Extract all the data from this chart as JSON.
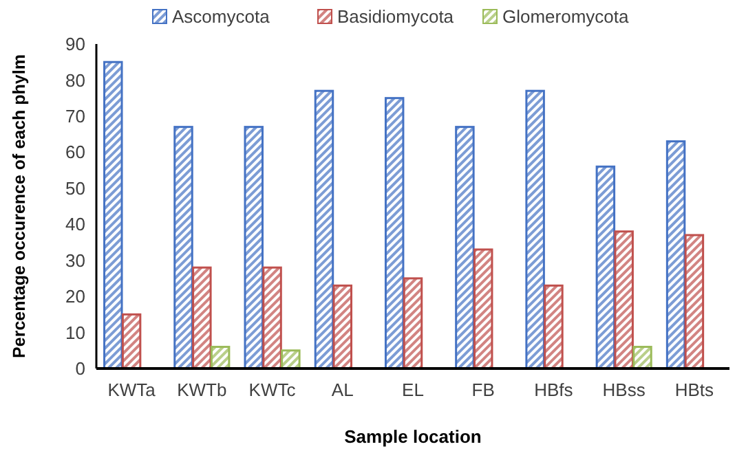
{
  "chart_data": {
    "type": "bar",
    "xlabel": "Sample location",
    "ylabel": "Percentage occurence of each phylm",
    "categories": [
      "KWTa",
      "KWTb",
      "KWTc",
      "AL",
      "EL",
      "FB",
      "HBfs",
      "HBss",
      "HBts"
    ],
    "series": [
      {
        "name": "Ascomycota",
        "color": "#4472c4",
        "values": [
          85,
          67,
          67,
          77,
          75,
          67,
          77,
          56,
          63
        ]
      },
      {
        "name": "Basidiomycota",
        "color": "#c0504d",
        "values": [
          15,
          28,
          28,
          23,
          25,
          33,
          23,
          38,
          37
        ]
      },
      {
        "name": "Glomeromycota",
        "color": "#9bbb59",
        "values": [
          null,
          6,
          5,
          null,
          null,
          null,
          null,
          6,
          null
        ]
      }
    ],
    "ylim": [
      0,
      90
    ],
    "yticks": [
      0,
      10,
      20,
      30,
      40,
      50,
      60,
      70,
      80,
      90
    ],
    "grid": false,
    "legend": "top"
  }
}
